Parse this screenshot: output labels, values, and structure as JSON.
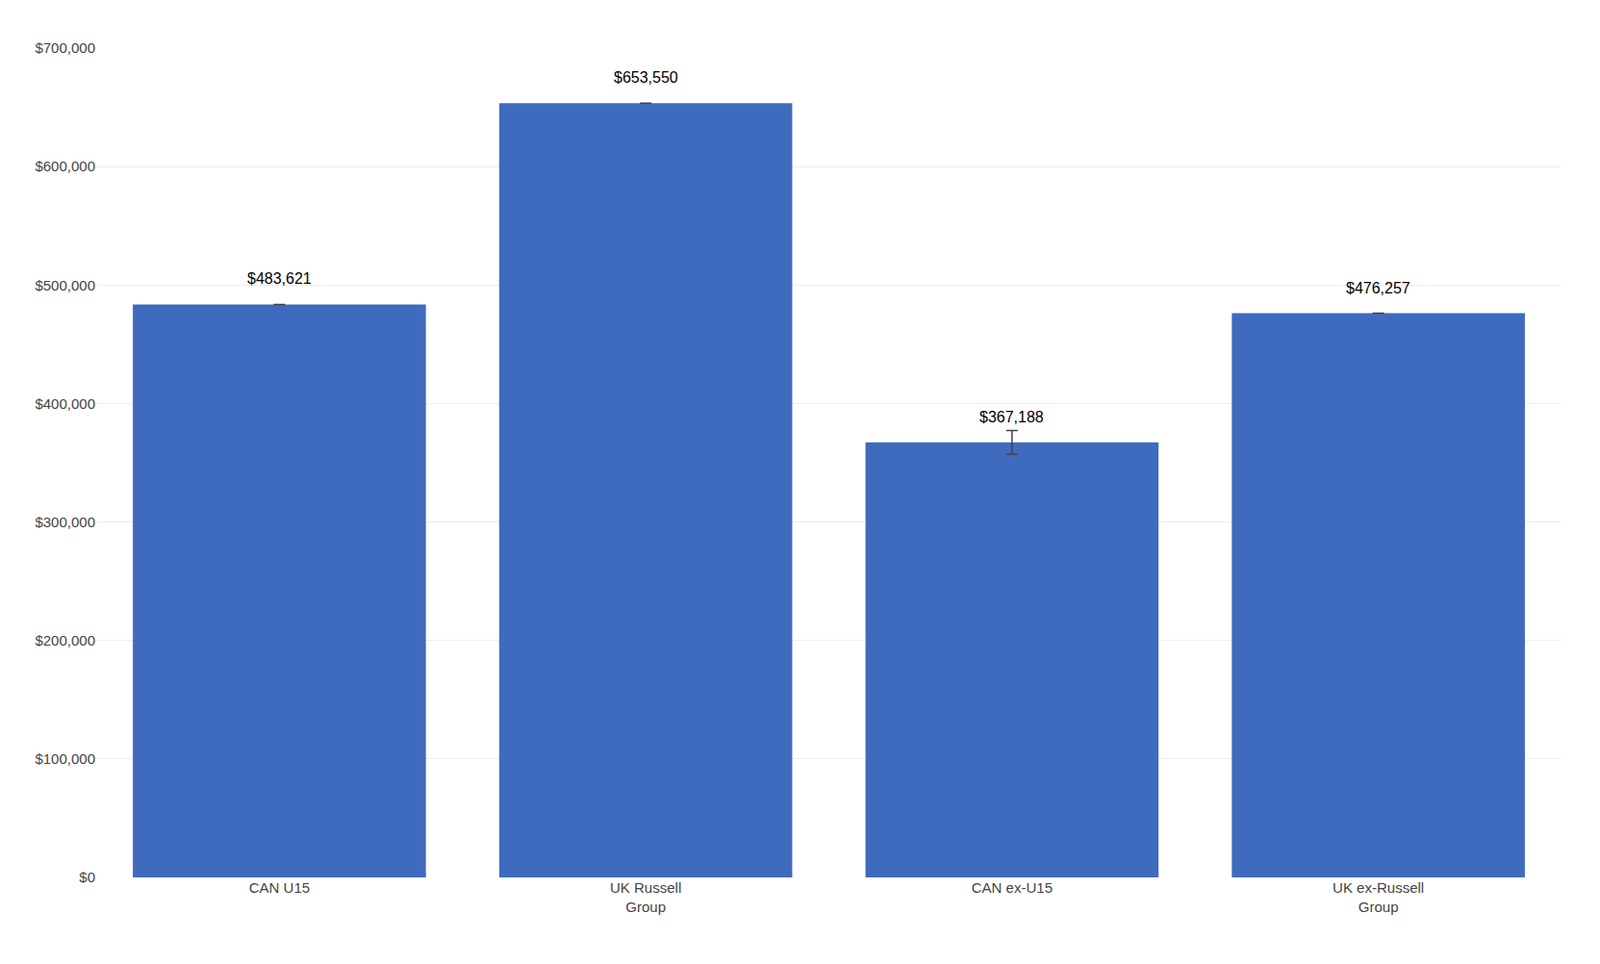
{
  "chart_data": {
    "type": "bar",
    "categories": [
      "CAN U15",
      "UK Russell\nGroup",
      "CAN ex-U15",
      "UK ex-Russell\nGroup"
    ],
    "values": [
      483621,
      653550,
      367188,
      476257
    ],
    "value_labels": [
      "$483,621",
      "$653,550",
      "$367,188",
      "$476,257"
    ],
    "error": [
      0,
      0,
      10000,
      0
    ],
    "color": "#3F6BBF",
    "ylim": [
      0,
      700000
    ],
    "yticks": [
      {
        "value": 0,
        "label": "$0"
      },
      {
        "value": 100000,
        "label": "$100,000"
      },
      {
        "value": 200000,
        "label": "$200,000"
      },
      {
        "value": 300000,
        "label": "$300,000"
      },
      {
        "value": 400000,
        "label": "$400,000"
      },
      {
        "value": 500000,
        "label": "$500,000"
      },
      {
        "value": 600000,
        "label": "$600,000"
      },
      {
        "value": 700000,
        "label": "$700,000"
      }
    ],
    "grid": true,
    "data_labels": true
  }
}
